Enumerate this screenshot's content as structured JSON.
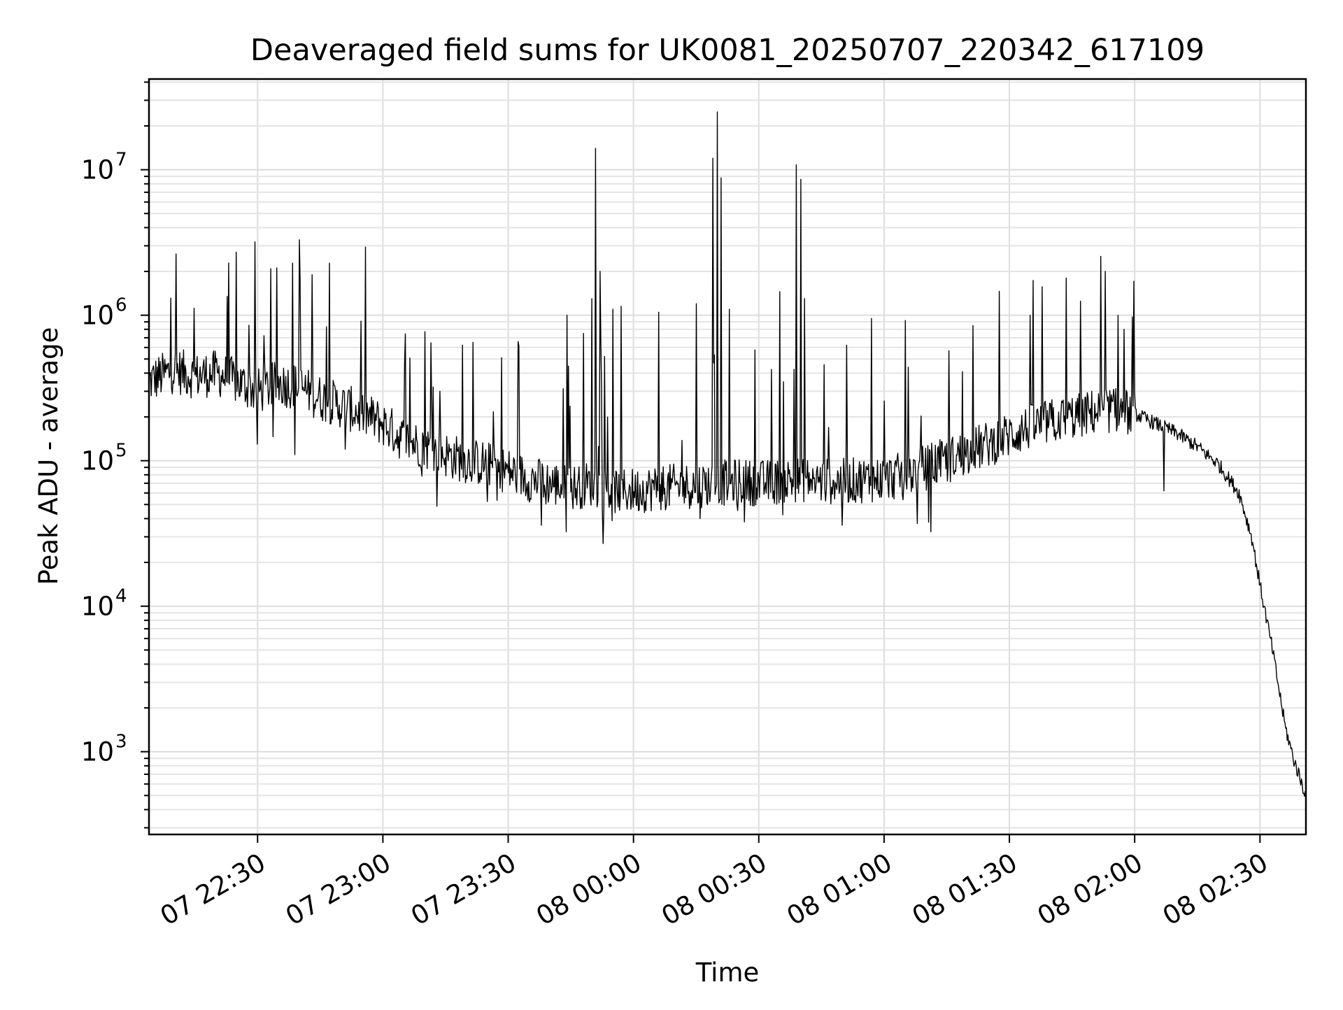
{
  "chart_data": {
    "type": "line",
    "title": "Deaveraged field sums for UK0081_20250707_220342_617109",
    "xlabel": "Time",
    "ylabel": "Peak ADU - average",
    "yscale": "log",
    "ylim": [
      270,
      42000000
    ],
    "xlim": [
      "07 22:04",
      "08 02:41"
    ],
    "grid": true,
    "x_ticks": [
      "07 22:30",
      "07 23:00",
      "07 23:30",
      "08 00:00",
      "08 00:30",
      "08 01:00",
      "08 01:30",
      "08 02:00",
      "08 02:30"
    ],
    "y_ticks": [
      {
        "base": "10",
        "exp": "3",
        "value": 1000
      },
      {
        "base": "10",
        "exp": "4",
        "value": 10000
      },
      {
        "base": "10",
        "exp": "5",
        "value": 100000
      },
      {
        "base": "10",
        "exp": "6",
        "value": 1000000
      },
      {
        "base": "10",
        "exp": "7",
        "value": 10000000
      }
    ],
    "series": [
      {
        "color": "#000000",
        "x": [
          "07 22:04",
          "07 22:10",
          "07 22:15",
          "07 22:20",
          "07 22:25",
          "07 22:30",
          "07 22:35",
          "07 22:40",
          "07 22:45",
          "07 22:50",
          "07 22:55",
          "07 23:00",
          "07 23:05",
          "07 23:10",
          "07 23:15",
          "07 23:20",
          "07 23:25",
          "07 23:30",
          "07 23:35",
          "07 23:40",
          "07 23:45",
          "07 23:50",
          "07 23:55",
          "08 00:00",
          "08 00:05",
          "08 00:10",
          "08 00:15",
          "08 00:20",
          "08 00:25",
          "08 00:30",
          "08 00:35",
          "08 00:40",
          "08 00:45",
          "08 00:50",
          "08 00:55",
          "08 01:00",
          "08 01:05",
          "08 01:10",
          "08 01:15",
          "08 01:20",
          "08 01:25",
          "08 01:30",
          "08 01:35",
          "08 01:40",
          "08 01:45",
          "08 01:50",
          "08 01:55",
          "08 02:00",
          "08 02:05",
          "08 02:10",
          "08 02:15",
          "08 02:20",
          "08 02:25",
          "08 02:28",
          "08 02:30",
          "08 02:33",
          "08 02:36",
          "08 02:38",
          "08 02:41"
        ],
        "y": [
          350000,
          420000,
          380000,
          400000,
          350000,
          300000,
          340000,
          320000,
          270000,
          240000,
          210000,
          180000,
          140000,
          125000,
          110000,
          100000,
          95000,
          85000,
          75000,
          70000,
          65000,
          70000,
          62000,
          62000,
          65000,
          66000,
          68000,
          70000,
          72000,
          70000,
          72000,
          75000,
          72000,
          72000,
          74000,
          75000,
          80000,
          90000,
          100000,
          115000,
          130000,
          150000,
          170000,
          185000,
          200000,
          215000,
          225000,
          210000,
          180000,
          155000,
          125000,
          95000,
          60000,
          30000,
          14000,
          5000,
          1500,
          900,
          500
        ]
      }
    ],
    "spikes": [
      {
        "x": "07 22:40",
        "y": 3300000
      },
      {
        "x": "07 22:43",
        "y": 1900000
      },
      {
        "x": "07 23:44",
        "y": 1000000
      },
      {
        "x": "07 23:48",
        "y": 750000
      },
      {
        "x": "07 23:50",
        "y": 1300000
      },
      {
        "x": "07 23:51",
        "y": 14000000
      },
      {
        "x": "07 23:52",
        "y": 2000000
      },
      {
        "x": "07 23:55",
        "y": 1100000
      },
      {
        "x": "07 23:57",
        "y": 1150000
      },
      {
        "x": "08 00:06",
        "y": 1050000
      },
      {
        "x": "08 00:15",
        "y": 1200000
      },
      {
        "x": "08 00:19",
        "y": 12000000
      },
      {
        "x": "08 00:20",
        "y": 25000000
      },
      {
        "x": "08 00:21",
        "y": 8800000
      },
      {
        "x": "08 00:23",
        "y": 1100000
      },
      {
        "x": "08 00:35",
        "y": 1450000
      },
      {
        "x": "08 00:39",
        "y": 10800000
      },
      {
        "x": "08 00:40",
        "y": 8600000
      },
      {
        "x": "08 00:41",
        "y": 1300000
      },
      {
        "x": "08 00:57",
        "y": 950000
      },
      {
        "x": "08 01:05",
        "y": 920000
      },
      {
        "x": "08 01:35",
        "y": 1000000
      },
      {
        "x": "08 01:47",
        "y": 1250000
      },
      {
        "x": "08 01:56",
        "y": 1000000
      }
    ],
    "dips": [
      {
        "x": "07 22:30",
        "y": 130000
      },
      {
        "x": "07 22:39",
        "y": 110000
      },
      {
        "x": "07 22:51",
        "y": 120000
      },
      {
        "x": "07 23:38",
        "y": 36000
      },
      {
        "x": "08 00:16",
        "y": 40000
      },
      {
        "x": "08 00:50",
        "y": 36000
      },
      {
        "x": "08 01:08",
        "y": 37000
      },
      {
        "x": "08 02:07",
        "y": 62000
      }
    ]
  }
}
